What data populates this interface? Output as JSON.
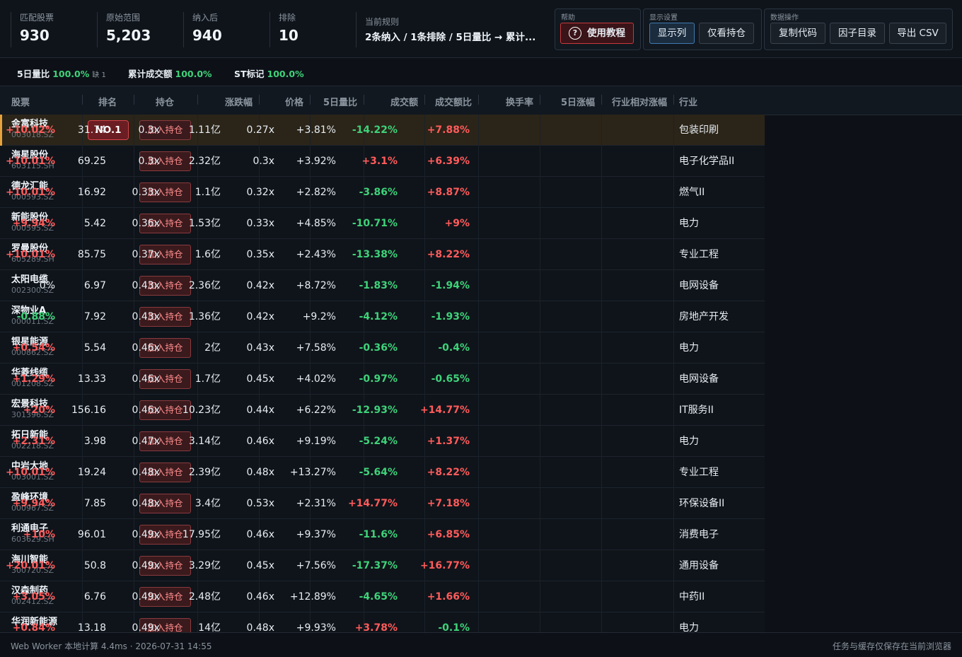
{
  "stats": [
    {
      "label": "匹配股票",
      "value": "930"
    },
    {
      "label": "原始范围",
      "value": "5,203"
    },
    {
      "label": "纳入后",
      "value": "940"
    },
    {
      "label": "排除",
      "value": "10"
    },
    {
      "label": "当前规则",
      "value": "2条纳入 / 1条排除 / 5日量比 → 累计..."
    }
  ],
  "groups": {
    "help": {
      "label": "帮助",
      "button": "使用教程"
    },
    "display": {
      "label": "显示设置",
      "show_columns": "显示列",
      "only_holdings": "仅看持仓"
    },
    "data": {
      "label": "数据操作",
      "copy_code": "复制代码",
      "factor_catalog": "因子目录",
      "export_csv": "导出 CSV"
    }
  },
  "coverage": [
    {
      "name": "5日量比",
      "pct": "100.0%",
      "missing": "缺 1"
    },
    {
      "name": "累计成交额",
      "pct": "100.0%",
      "missing": ""
    },
    {
      "name": "ST标记",
      "pct": "100.0%",
      "missing": ""
    }
  ],
  "columns": [
    "股票",
    "排名",
    "持仓",
    "涨跌幅",
    "价格",
    "5日量比",
    "成交额",
    "成交额比",
    "换手率",
    "5日涨幅",
    "行业相对涨幅",
    "行业"
  ],
  "add_label": "加入持仓",
  "rank_label": "NO.1",
  "colors": {
    "up": "#ff5b5b",
    "down": "#3fd27a",
    "accent": "#e6a23c",
    "background": "#0d1117"
  },
  "rows": [
    {
      "name": "金富科技",
      "code": "003018.SZ",
      "chg": "+10.02%",
      "price": "31.74",
      "vr5": "0.3x",
      "amt": "1.11亿",
      "amt_ratio": "0.27x",
      "turnover": "+3.81%",
      "chg5": "-14.22%",
      "rel": "+7.88%",
      "industry": "包装印刷"
    },
    {
      "name": "海星股份",
      "code": "603115.SH",
      "chg": "+10.01%",
      "price": "69.25",
      "vr5": "0.3x",
      "amt": "2.32亿",
      "amt_ratio": "0.3x",
      "turnover": "+3.92%",
      "chg5": "+3.1%",
      "rel": "+6.39%",
      "industry": "电子化学品II"
    },
    {
      "name": "德龙汇能",
      "code": "000593.SZ",
      "chg": "+10.01%",
      "price": "16.92",
      "vr5": "0.33x",
      "amt": "1.1亿",
      "amt_ratio": "0.32x",
      "turnover": "+2.82%",
      "chg5": "-3.86%",
      "rel": "+8.87%",
      "industry": "燃气II"
    },
    {
      "name": "新能股份",
      "code": "000595.SZ",
      "chg": "+9.94%",
      "price": "5.42",
      "vr5": "0.36x",
      "amt": "1.53亿",
      "amt_ratio": "0.33x",
      "turnover": "+4.85%",
      "chg5": "-10.71%",
      "rel": "+9%",
      "industry": "电力"
    },
    {
      "name": "罗曼股份",
      "code": "605289.SH",
      "chg": "+10.01%",
      "price": "85.75",
      "vr5": "0.37x",
      "amt": "1.6亿",
      "amt_ratio": "0.35x",
      "turnover": "+2.43%",
      "chg5": "-13.38%",
      "rel": "+8.22%",
      "industry": "专业工程"
    },
    {
      "name": "太阳电缆",
      "code": "002300.SZ",
      "chg": "0%",
      "price": "6.97",
      "vr5": "0.43x",
      "amt": "2.36亿",
      "amt_ratio": "0.42x",
      "turnover": "+8.72%",
      "chg5": "-1.83%",
      "rel": "-1.94%",
      "industry": "电网设备"
    },
    {
      "name": "深物业A",
      "code": "000011.SZ",
      "chg": "-0.88%",
      "price": "7.92",
      "vr5": "0.43x",
      "amt": "1.36亿",
      "amt_ratio": "0.42x",
      "turnover": "+9.2%",
      "chg5": "-4.12%",
      "rel": "-1.93%",
      "industry": "房地产开发"
    },
    {
      "name": "银星能源",
      "code": "000862.SZ",
      "chg": "+0.54%",
      "price": "5.54",
      "vr5": "0.46x",
      "amt": "2亿",
      "amt_ratio": "0.43x",
      "turnover": "+7.58%",
      "chg5": "-0.36%",
      "rel": "-0.4%",
      "industry": "电力"
    },
    {
      "name": "华菱线缆",
      "code": "001208.SZ",
      "chg": "+1.29%",
      "price": "13.33",
      "vr5": "0.46x",
      "amt": "1.7亿",
      "amt_ratio": "0.45x",
      "turnover": "+4.02%",
      "chg5": "-0.97%",
      "rel": "-0.65%",
      "industry": "电网设备"
    },
    {
      "name": "宏景科技",
      "code": "301396.SZ",
      "chg": "+20%",
      "price": "156.16",
      "vr5": "0.46x",
      "amt": "10.23亿",
      "amt_ratio": "0.44x",
      "turnover": "+6.22%",
      "chg5": "-12.93%",
      "rel": "+14.77%",
      "industry": "IT服务II"
    },
    {
      "name": "拓日新能",
      "code": "002218.SZ",
      "chg": "+2.31%",
      "price": "3.98",
      "vr5": "0.47x",
      "amt": "3.14亿",
      "amt_ratio": "0.46x",
      "turnover": "+9.19%",
      "chg5": "-5.24%",
      "rel": "+1.37%",
      "industry": "电力"
    },
    {
      "name": "中岩大地",
      "code": "003001.SZ",
      "chg": "+10.01%",
      "price": "19.24",
      "vr5": "0.48x",
      "amt": "2.39亿",
      "amt_ratio": "0.48x",
      "turnover": "+13.27%",
      "chg5": "-5.64%",
      "rel": "+8.22%",
      "industry": "专业工程"
    },
    {
      "name": "盈峰环境",
      "code": "000967.SZ",
      "chg": "+9.94%",
      "price": "7.85",
      "vr5": "0.48x",
      "amt": "3.4亿",
      "amt_ratio": "0.53x",
      "turnover": "+2.31%",
      "chg5": "+14.77%",
      "rel": "+7.18%",
      "industry": "环保设备II"
    },
    {
      "name": "利通电子",
      "code": "603629.SH",
      "chg": "+10%",
      "price": "96.01",
      "vr5": "0.49x",
      "amt": "17.95亿",
      "amt_ratio": "0.46x",
      "turnover": "+9.37%",
      "chg5": "-11.6%",
      "rel": "+6.85%",
      "industry": "消费电子"
    },
    {
      "name": "海川智能",
      "code": "300720.SZ",
      "chg": "+20.01%",
      "price": "50.8",
      "vr5": "0.49x",
      "amt": "3.29亿",
      "amt_ratio": "0.45x",
      "turnover": "+7.56%",
      "chg5": "-17.37%",
      "rel": "+16.77%",
      "industry": "通用设备"
    },
    {
      "name": "汉森制药",
      "code": "002412.SZ",
      "chg": "+3.05%",
      "price": "6.76",
      "vr5": "0.49x",
      "amt": "2.48亿",
      "amt_ratio": "0.46x",
      "turnover": "+12.89%",
      "chg5": "-4.65%",
      "rel": "+1.66%",
      "industry": "中药II"
    },
    {
      "name": "华润新能源",
      "code": "",
      "chg": "+0.84%",
      "price": "13.18",
      "vr5": "0.49x",
      "amt": "14亿",
      "amt_ratio": "0.48x",
      "turnover": "+9.93%",
      "chg5": "+3.78%",
      "rel": "-0.1%",
      "industry": "电力"
    }
  ],
  "footer": {
    "left": "Web Worker 本地计算 4.4ms · 2026-07-31 14:55",
    "right": "任务与缓存仅保存在当前浏览器"
  }
}
